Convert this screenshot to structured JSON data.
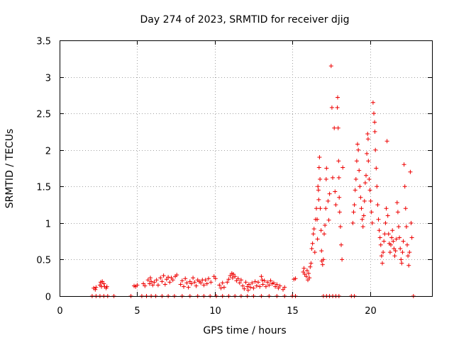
{
  "chart_data": {
    "type": "scatter",
    "title": "Day 274 of 2023, SRMTID for receiver djig",
    "xlabel": "GPS time / hours",
    "ylabel": "SRMTID / TECUs",
    "xlim": [
      0,
      24
    ],
    "ylim": [
      0,
      3.5
    ],
    "xticks": [
      0,
      5,
      10,
      15,
      20
    ],
    "xtick_labels": [
      "0",
      "5",
      "10",
      "15",
      "20"
    ],
    "yticks": [
      0,
      0.5,
      1,
      1.5,
      2,
      2.5,
      3,
      3.5
    ],
    "ytick_labels": [
      "0",
      "0.5",
      "1",
      "1.5",
      "2",
      "2.5",
      "3",
      "3.5"
    ],
    "grid": true,
    "marker": "+",
    "color": "#ee0000",
    "series": [
      {
        "name": "SRMTID",
        "points": [
          [
            2.1,
            0.0
          ],
          [
            2.35,
            0.0
          ],
          [
            2.6,
            0.0
          ],
          [
            2.85,
            0.0
          ],
          [
            3.1,
            0.0
          ],
          [
            3.5,
            0.0
          ],
          [
            4.6,
            0.0
          ],
          [
            5.3,
            0.0
          ],
          [
            5.6,
            0.0
          ],
          [
            5.9,
            0.0
          ],
          [
            6.2,
            0.0
          ],
          [
            6.6,
            0.0
          ],
          [
            7.0,
            0.0
          ],
          [
            7.4,
            0.0
          ],
          [
            7.9,
            0.0
          ],
          [
            8.4,
            0.0
          ],
          [
            8.9,
            0.0
          ],
          [
            9.3,
            0.0
          ],
          [
            9.7,
            0.0
          ],
          [
            10.1,
            0.0
          ],
          [
            10.5,
            0.0
          ],
          [
            10.9,
            0.0
          ],
          [
            11.3,
            0.0
          ],
          [
            11.7,
            0.0
          ],
          [
            12.1,
            0.0
          ],
          [
            12.5,
            0.0
          ],
          [
            13.0,
            0.0
          ],
          [
            13.5,
            0.0
          ],
          [
            14.0,
            0.0
          ],
          [
            14.5,
            0.0
          ],
          [
            15.0,
            0.0
          ],
          [
            15.2,
            0.0
          ],
          [
            17.0,
            0.0
          ],
          [
            17.2,
            0.0
          ],
          [
            17.4,
            0.0
          ],
          [
            17.6,
            0.0
          ],
          [
            17.8,
            0.0
          ],
          [
            18.0,
            0.0
          ],
          [
            18.8,
            0.0
          ],
          [
            19.0,
            0.0
          ],
          [
            22.8,
            0.0
          ],
          [
            2.2,
            0.11
          ],
          [
            2.3,
            0.09
          ],
          [
            2.35,
            0.12
          ],
          [
            2.6,
            0.15
          ],
          [
            2.65,
            0.19
          ],
          [
            2.7,
            0.13
          ],
          [
            2.75,
            0.2
          ],
          [
            2.85,
            0.17
          ],
          [
            2.9,
            0.13
          ],
          [
            3.0,
            0.11
          ],
          [
            3.05,
            0.13
          ],
          [
            4.8,
            0.14
          ],
          [
            4.9,
            0.13
          ],
          [
            5.0,
            0.15
          ],
          [
            5.4,
            0.17
          ],
          [
            5.5,
            0.14
          ],
          [
            5.7,
            0.22
          ],
          [
            5.8,
            0.17
          ],
          [
            5.85,
            0.25
          ],
          [
            5.9,
            0.2
          ],
          [
            6.0,
            0.15
          ],
          [
            6.1,
            0.19
          ],
          [
            6.25,
            0.22
          ],
          [
            6.35,
            0.15
          ],
          [
            6.5,
            0.25
          ],
          [
            6.6,
            0.2
          ],
          [
            6.7,
            0.28
          ],
          [
            6.8,
            0.16
          ],
          [
            6.9,
            0.23
          ],
          [
            7.0,
            0.26
          ],
          [
            7.1,
            0.19
          ],
          [
            7.2,
            0.25
          ],
          [
            7.3,
            0.22
          ],
          [
            7.45,
            0.27
          ],
          [
            7.55,
            0.29
          ],
          [
            7.8,
            0.16
          ],
          [
            7.9,
            0.21
          ],
          [
            8.0,
            0.13
          ],
          [
            8.1,
            0.24
          ],
          [
            8.2,
            0.18
          ],
          [
            8.3,
            0.12
          ],
          [
            8.4,
            0.2
          ],
          [
            8.5,
            0.17
          ],
          [
            8.6,
            0.25
          ],
          [
            8.7,
            0.19
          ],
          [
            8.8,
            0.14
          ],
          [
            8.9,
            0.22
          ],
          [
            9.0,
            0.2
          ],
          [
            9.1,
            0.18
          ],
          [
            9.2,
            0.22
          ],
          [
            9.3,
            0.15
          ],
          [
            9.4,
            0.22
          ],
          [
            9.5,
            0.17
          ],
          [
            9.6,
            0.24
          ],
          [
            9.75,
            0.19
          ],
          [
            9.95,
            0.27
          ],
          [
            10.05,
            0.24
          ],
          [
            10.3,
            0.15
          ],
          [
            10.4,
            0.11
          ],
          [
            10.5,
            0.18
          ],
          [
            10.6,
            0.12
          ],
          [
            10.8,
            0.19
          ],
          [
            10.9,
            0.23
          ],
          [
            11.0,
            0.28
          ],
          [
            11.1,
            0.31
          ],
          [
            11.15,
            0.25
          ],
          [
            11.2,
            0.3
          ],
          [
            11.3,
            0.27
          ],
          [
            11.4,
            0.21
          ],
          [
            11.5,
            0.24
          ],
          [
            11.6,
            0.18
          ],
          [
            11.7,
            0.22
          ],
          [
            11.8,
            0.14
          ],
          [
            11.9,
            0.1
          ],
          [
            12.0,
            0.19
          ],
          [
            12.1,
            0.13
          ],
          [
            12.15,
            0.08
          ],
          [
            12.2,
            0.16
          ],
          [
            12.3,
            0.12
          ],
          [
            12.4,
            0.18
          ],
          [
            12.5,
            0.11
          ],
          [
            12.6,
            0.2
          ],
          [
            12.7,
            0.14
          ],
          [
            12.8,
            0.19
          ],
          [
            12.9,
            0.13
          ],
          [
            13.0,
            0.27
          ],
          [
            13.05,
            0.22
          ],
          [
            13.1,
            0.16
          ],
          [
            13.2,
            0.21
          ],
          [
            13.3,
            0.13
          ],
          [
            13.4,
            0.19
          ],
          [
            13.5,
            0.15
          ],
          [
            13.6,
            0.21
          ],
          [
            13.7,
            0.17
          ],
          [
            13.8,
            0.18
          ],
          [
            13.9,
            0.13
          ],
          [
            14.0,
            0.16
          ],
          [
            14.1,
            0.11
          ],
          [
            14.2,
            0.14
          ],
          [
            14.4,
            0.09
          ],
          [
            14.5,
            0.12
          ],
          [
            15.1,
            0.23
          ],
          [
            15.2,
            0.24
          ],
          [
            15.7,
            0.33
          ],
          [
            15.75,
            0.38
          ],
          [
            15.8,
            0.3
          ],
          [
            15.9,
            0.27
          ],
          [
            15.95,
            0.35
          ],
          [
            16.0,
            0.22
          ],
          [
            16.05,
            0.31
          ],
          [
            16.1,
            0.25
          ],
          [
            16.15,
            0.4
          ],
          [
            16.2,
            0.45
          ],
          [
            16.25,
            0.65
          ],
          [
            16.3,
            0.72
          ],
          [
            16.35,
            0.85
          ],
          [
            16.4,
            0.92
          ],
          [
            16.45,
            0.6
          ],
          [
            16.5,
            1.05
          ],
          [
            16.55,
            1.2
          ],
          [
            16.6,
            1.05
          ],
          [
            16.62,
            0.78
          ],
          [
            16.65,
            1.5
          ],
          [
            16.68,
            1.45
          ],
          [
            16.7,
            1.32
          ],
          [
            16.72,
            1.76
          ],
          [
            16.75,
            1.9
          ],
          [
            16.78,
            1.6
          ],
          [
            16.8,
            1.2
          ],
          [
            16.85,
            0.9
          ],
          [
            16.88,
            0.62
          ],
          [
            16.9,
            0.48
          ],
          [
            16.95,
            0.43
          ],
          [
            17.0,
            0.5
          ],
          [
            17.05,
            0.85
          ],
          [
            17.1,
            0.97
          ],
          [
            17.15,
            1.2
          ],
          [
            17.18,
            1.6
          ],
          [
            17.2,
            1.75
          ],
          [
            17.3,
            1.3
          ],
          [
            17.35,
            1.04
          ],
          [
            17.4,
            1.4
          ],
          [
            17.5,
            3.15
          ],
          [
            17.55,
            2.58
          ],
          [
            17.6,
            1.62
          ],
          [
            17.7,
            2.3
          ],
          [
            17.75,
            1.43
          ],
          [
            17.8,
            1.25
          ],
          [
            17.9,
            2.58
          ],
          [
            17.92,
            2.72
          ],
          [
            17.95,
            2.3
          ],
          [
            17.98,
            1.85
          ],
          [
            18.0,
            1.62
          ],
          [
            18.02,
            1.35
          ],
          [
            18.05,
            1.15
          ],
          [
            18.1,
            0.95
          ],
          [
            18.15,
            0.7
          ],
          [
            18.2,
            0.5
          ],
          [
            18.25,
            1.76
          ],
          [
            18.9,
            1.0
          ],
          [
            18.95,
            1.15
          ],
          [
            19.0,
            1.25
          ],
          [
            19.05,
            1.45
          ],
          [
            19.1,
            1.6
          ],
          [
            19.15,
            1.85
          ],
          [
            19.2,
            2.08
          ],
          [
            19.25,
            2.0
          ],
          [
            19.3,
            1.72
          ],
          [
            19.35,
            1.5
          ],
          [
            19.4,
            1.35
          ],
          [
            19.45,
            1.2
          ],
          [
            19.5,
            1.05
          ],
          [
            19.55,
            0.95
          ],
          [
            19.6,
            1.1
          ],
          [
            19.65,
            1.3
          ],
          [
            19.7,
            1.55
          ],
          [
            19.75,
            1.65
          ],
          [
            19.8,
            1.95
          ],
          [
            19.85,
            2.22
          ],
          [
            19.88,
            2.15
          ],
          [
            19.9,
            1.85
          ],
          [
            19.95,
            1.6
          ],
          [
            20.0,
            1.45
          ],
          [
            20.05,
            1.3
          ],
          [
            20.1,
            1.15
          ],
          [
            20.15,
            1.0
          ],
          [
            20.2,
            2.65
          ],
          [
            20.25,
            2.5
          ],
          [
            20.3,
            2.38
          ],
          [
            20.32,
            2.25
          ],
          [
            20.35,
            2.0
          ],
          [
            20.4,
            1.75
          ],
          [
            20.45,
            1.5
          ],
          [
            20.5,
            1.25
          ],
          [
            20.55,
            1.05
          ],
          [
            20.6,
            0.9
          ],
          [
            20.65,
            0.8
          ],
          [
            20.7,
            0.7
          ],
          [
            20.75,
            0.55
          ],
          [
            20.8,
            0.45
          ],
          [
            20.85,
            0.6
          ],
          [
            20.9,
            0.75
          ],
          [
            20.95,
            0.85
          ],
          [
            21.0,
            1.0
          ],
          [
            21.05,
            1.2
          ],
          [
            21.1,
            2.12
          ],
          [
            21.15,
            1.1
          ],
          [
            21.2,
            0.85
          ],
          [
            21.25,
            0.72
          ],
          [
            21.3,
            0.6
          ],
          [
            21.35,
            0.7
          ],
          [
            21.4,
            0.8
          ],
          [
            21.45,
            0.9
          ],
          [
            21.5,
            0.75
          ],
          [
            21.55,
            0.65
          ],
          [
            21.6,
            0.55
          ],
          [
            21.65,
            0.62
          ],
          [
            21.7,
            0.78
          ],
          [
            21.75,
            1.28
          ],
          [
            21.8,
            1.15
          ],
          [
            21.85,
            0.95
          ],
          [
            21.9,
            0.8
          ],
          [
            21.95,
            0.65
          ],
          [
            22.0,
            0.5
          ],
          [
            22.05,
            0.45
          ],
          [
            22.1,
            0.6
          ],
          [
            22.15,
            0.75
          ],
          [
            22.2,
            1.8
          ],
          [
            22.25,
            1.5
          ],
          [
            22.3,
            1.2
          ],
          [
            22.35,
            0.95
          ],
          [
            22.4,
            0.7
          ],
          [
            22.45,
            0.55
          ],
          [
            22.5,
            0.42
          ],
          [
            22.55,
            0.6
          ],
          [
            22.6,
            1.7
          ],
          [
            22.65,
            1.0
          ],
          [
            22.7,
            0.8
          ]
        ]
      }
    ]
  }
}
